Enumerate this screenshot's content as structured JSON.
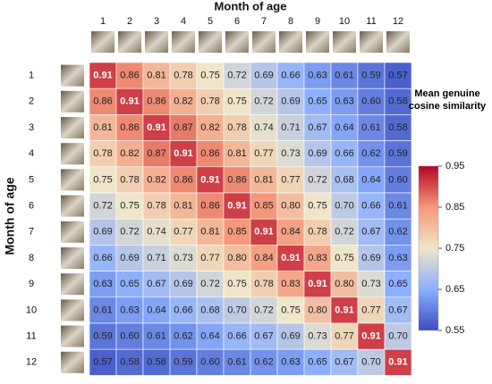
{
  "chart_data": {
    "type": "heatmap",
    "x_label": "Month of age",
    "y_label": "Month of age",
    "x_categories": [
      "1",
      "2",
      "3",
      "4",
      "5",
      "6",
      "7",
      "8",
      "9",
      "10",
      "11",
      "12"
    ],
    "y_categories": [
      "1",
      "2",
      "3",
      "4",
      "5",
      "6",
      "7",
      "8",
      "9",
      "10",
      "11",
      "12"
    ],
    "values": [
      [
        0.91,
        0.86,
        0.81,
        0.78,
        0.75,
        0.72,
        0.69,
        0.66,
        0.63,
        0.61,
        0.59,
        0.57
      ],
      [
        0.86,
        0.91,
        0.86,
        0.82,
        0.78,
        0.75,
        0.72,
        0.69,
        0.65,
        0.63,
        0.6,
        0.58
      ],
      [
        0.81,
        0.86,
        0.91,
        0.87,
        0.82,
        0.78,
        0.74,
        0.71,
        0.67,
        0.64,
        0.61,
        0.58
      ],
      [
        0.78,
        0.82,
        0.87,
        0.91,
        0.86,
        0.81,
        0.77,
        0.73,
        0.69,
        0.66,
        0.62,
        0.59
      ],
      [
        0.75,
        0.78,
        0.82,
        0.86,
        0.91,
        0.86,
        0.81,
        0.77,
        0.72,
        0.68,
        0.64,
        0.6
      ],
      [
        0.72,
        0.75,
        0.78,
        0.81,
        0.86,
        0.91,
        0.85,
        0.8,
        0.75,
        0.7,
        0.66,
        0.61
      ],
      [
        0.69,
        0.72,
        0.74,
        0.77,
        0.81,
        0.85,
        0.91,
        0.84,
        0.78,
        0.72,
        0.67,
        0.62
      ],
      [
        0.66,
        0.69,
        0.71,
        0.73,
        0.77,
        0.8,
        0.84,
        0.91,
        0.83,
        0.75,
        0.69,
        0.63
      ],
      [
        0.63,
        0.65,
        0.67,
        0.69,
        0.72,
        0.75,
        0.78,
        0.83,
        0.91,
        0.8,
        0.73,
        0.65
      ],
      [
        0.61,
        0.63,
        0.64,
        0.66,
        0.68,
        0.7,
        0.72,
        0.75,
        0.8,
        0.91,
        0.77,
        0.67
      ],
      [
        0.59,
        0.6,
        0.61,
        0.62,
        0.64,
        0.66,
        0.67,
        0.69,
        0.73,
        0.77,
        0.91,
        0.7
      ],
      [
        0.57,
        0.58,
        0.58,
        0.59,
        0.6,
        0.61,
        0.62,
        0.63,
        0.65,
        0.67,
        0.7,
        0.91
      ]
    ],
    "value_labels": [
      [
        "0.91",
        "0.86",
        "0.81",
        "0.78",
        "0.75",
        "0.72",
        "0.69",
        "0.66",
        "0.63",
        "0.61",
        "0.59",
        "0.57"
      ],
      [
        "0.86",
        "0.91",
        "0.86",
        "0.82",
        "0.78",
        "0.75",
        "0.72",
        "0.69",
        "0.65",
        "0.63",
        "0.60",
        "0.58"
      ],
      [
        "0.81",
        "0.86",
        "0.91",
        "0.87",
        "0.82",
        "0.78",
        "0.74",
        "0.71",
        "0.67",
        "0.64",
        "0.61",
        "0.58"
      ],
      [
        "0.78",
        "0.82",
        "0.87",
        "0.91",
        "0.86",
        "0.81",
        "0.77",
        "0.73",
        "0.69",
        "0.66",
        "0.62",
        "0.59"
      ],
      [
        "0.75",
        "0.78",
        "0.82",
        "0.86",
        "0.91",
        "0.86",
        "0.81",
        "0.77",
        "0.72",
        "0.68",
        "0.64",
        "0.60"
      ],
      [
        "0.72",
        "0.75",
        "0.78",
        "0.81",
        "0.86",
        "0.91",
        "0.85",
        "0.80",
        "0.75",
        "0.70",
        "0.66",
        "0.61"
      ],
      [
        "0.69",
        "0.72",
        "0.74",
        "0.77",
        "0.81",
        "0.85",
        "0.91",
        "0.84",
        "0.78",
        "0.72",
        "0.67",
        "0.62"
      ],
      [
        "0.66",
        "0.69",
        "0.71",
        "0.73",
        "0.77",
        "0.80",
        "0.84",
        "0.91",
        "0.83",
        "0.75",
        "0.69",
        "0.63"
      ],
      [
        "0.63",
        "0.65",
        "0.67",
        "0.69",
        "0.72",
        "0.75",
        "0.78",
        "0.83",
        "0.91",
        "0.80",
        "0.73",
        "0.65"
      ],
      [
        "0.61",
        "0.63",
        "0.64",
        "0.66",
        "0.68",
        "0.70",
        "0.72",
        "0.75",
        "0.80",
        "0.91",
        "0.77",
        "0.67"
      ],
      [
        "0.59",
        "0.60",
        "0.61",
        "0.62",
        "0.64",
        "0.66",
        "0.67",
        "0.69",
        "0.73",
        "0.77",
        "0.91",
        "0.70"
      ],
      [
        "0.57",
        "0.58",
        "0.58",
        "0.59",
        "0.60",
        "0.61",
        "0.62",
        "0.63",
        "0.65",
        "0.67",
        "0.70",
        "0.91"
      ]
    ],
    "colorbar_label": "Mean genuine cosine similarity",
    "clim": [
      0.55,
      0.95
    ],
    "cticks": [
      0.55,
      0.65,
      0.75,
      0.85,
      0.95
    ],
    "colormap": [
      "#3b4cc0",
      "#8db0fe",
      "#efe5c8",
      "#f4987a",
      "#b40426"
    ]
  }
}
